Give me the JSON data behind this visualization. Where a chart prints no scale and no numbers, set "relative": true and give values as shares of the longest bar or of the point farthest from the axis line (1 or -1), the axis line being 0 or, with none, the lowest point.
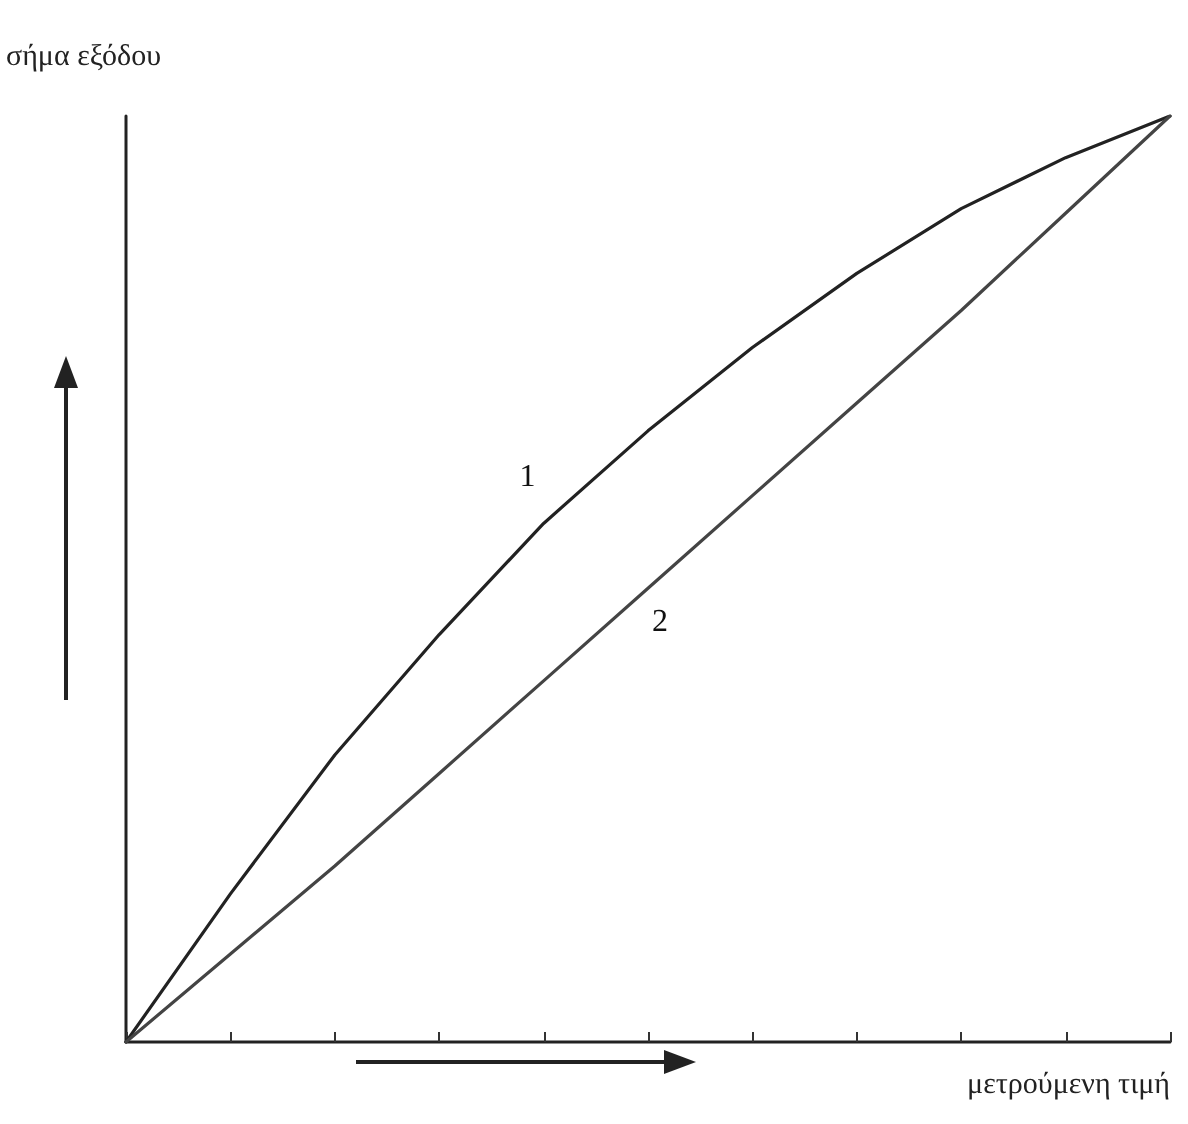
{
  "chart_data": {
    "type": "line",
    "relative": true,
    "ylabel": "σήμα εξόδου",
    "xlabel": "μετρούμενη τιμή",
    "categories": [
      null,
      null,
      null,
      null,
      null,
      null,
      null,
      null,
      null,
      null,
      null
    ],
    "series": [
      {
        "name": "1",
        "color": "#222222",
        "values": [
          0,
          0.16,
          0.31,
          0.44,
          0.56,
          0.66,
          0.75,
          0.83,
          0.9,
          0.955,
          1
        ]
      },
      {
        "name": "2",
        "color": "#444444",
        "values": [
          0,
          0.095,
          0.19,
          0.29,
          0.39,
          0.49,
          0.59,
          0.69,
          0.79,
          0.895,
          1
        ]
      }
    ],
    "marker": "none",
    "line_style": "solid",
    "grid": false,
    "legend": false
  }
}
